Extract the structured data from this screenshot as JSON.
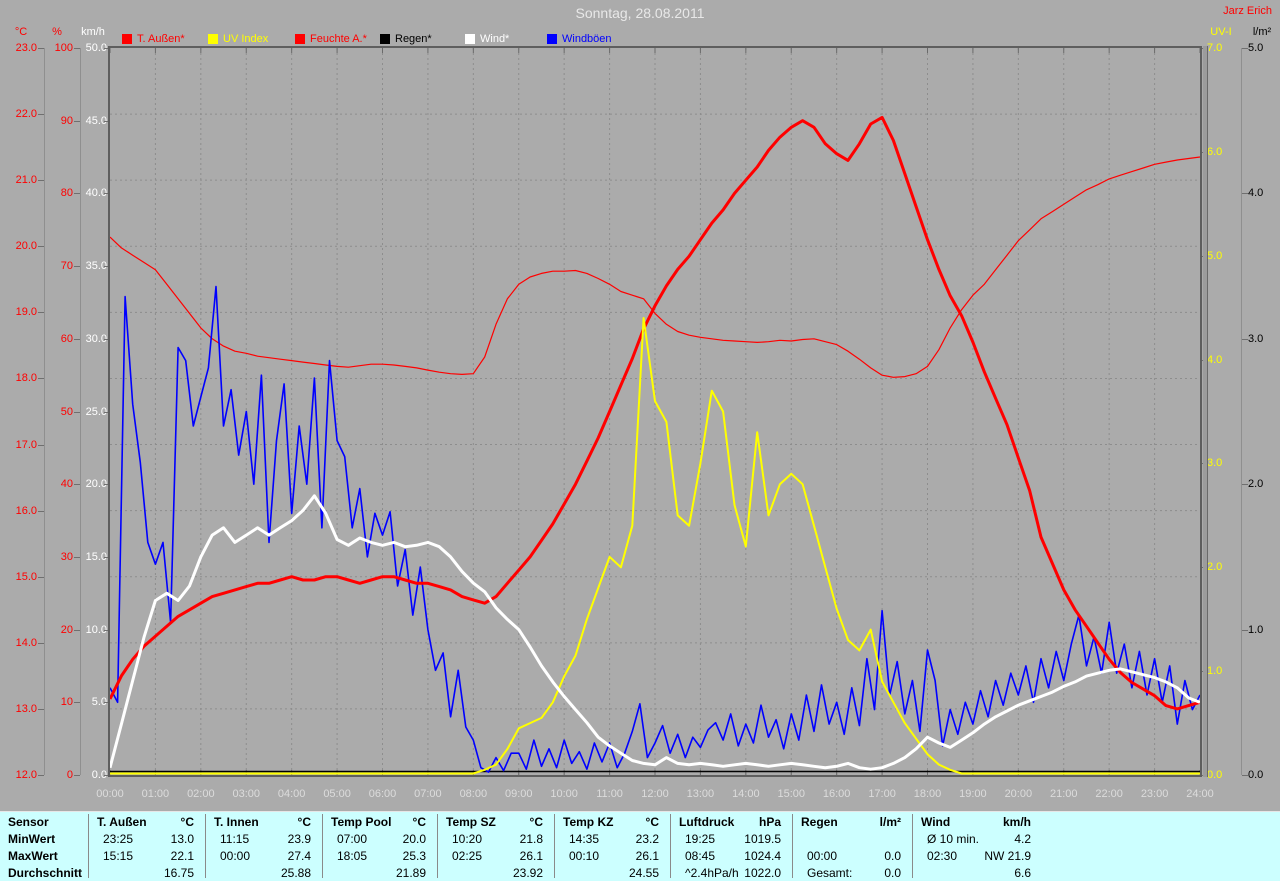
{
  "window": {
    "title": "Sonntag, 28.08.2011",
    "author": "Jarz Erich",
    "background": "#ABABAB"
  },
  "legend": [
    {
      "label": "T. Außen*",
      "color": "#FF0000"
    },
    {
      "label": "UV Index",
      "color": "#FFFF00"
    },
    {
      "label": "Feuchte A.*",
      "color": "#FF0000"
    },
    {
      "label": "Regen*",
      "color": "#000000"
    },
    {
      "label": "Wind*",
      "color": "#FFFFFF"
    },
    {
      "label": "Windböen",
      "color": "#0000FF"
    }
  ],
  "chart_data": {
    "type": "line",
    "title": "Sonntag, 28.08.2011",
    "x_unit": "time of day (hours)",
    "x_range": [
      0,
      24
    ],
    "x_ticks": [
      "00:00",
      "01:00",
      "02:00",
      "03:00",
      "04:00",
      "05:00",
      "06:00",
      "07:00",
      "08:00",
      "09:00",
      "10:00",
      "11:00",
      "12:00",
      "13:00",
      "14:00",
      "15:00",
      "16:00",
      "17:00",
      "18:00",
      "19:00",
      "20:00",
      "21:00",
      "22:00",
      "23:00",
      "24:00"
    ],
    "grid": {
      "color": "#8D8D8D",
      "style": "dashed",
      "h_lines": 10,
      "v_lines_every_hour": true
    },
    "y_axes": {
      "temp": {
        "header": "°C",
        "color": "#FF0000",
        "min": 12,
        "max": 23,
        "ticks": [
          "23.0",
          "22.0",
          "21.0",
          "20.0",
          "19.0",
          "18.0",
          "17.0",
          "16.0",
          "15.0",
          "14.0",
          "13.0",
          "12.0"
        ]
      },
      "hum": {
        "header": "%",
        "color": "#FF0000",
        "min": 0,
        "max": 100,
        "ticks": [
          "100",
          "90",
          "80",
          "70",
          "60",
          "50",
          "40",
          "30",
          "20",
          "10",
          "0"
        ]
      },
      "wind": {
        "header": "km/h",
        "color": "#FFFFFF",
        "min": 0,
        "max": 50,
        "ticks": [
          "50.0",
          "45.0",
          "40.0",
          "35.0",
          "30.0",
          "25.0",
          "20.0",
          "15.0",
          "10.0",
          "5.0",
          "0.0"
        ]
      },
      "uv": {
        "header": "UV-I",
        "color": "#FFFF00",
        "min": 0,
        "max": 7,
        "ticks": [
          "7.0",
          "6.0",
          "5.0",
          "4.0",
          "3.0",
          "2.0",
          "1.0",
          "0.0"
        ]
      },
      "rain": {
        "header": "l/m²",
        "color": "#000000",
        "min": 0,
        "max": 5,
        "ticks": [
          "5.0",
          "4.0",
          "3.0",
          "2.0",
          "1.0",
          "0.0"
        ]
      }
    },
    "series": [
      {
        "name": "Regen*",
        "axis": "rain",
        "color": "#000000",
        "width": 1.4,
        "x": [
          0,
          24
        ],
        "values": [
          0,
          0
        ]
      },
      {
        "name": "Feuchte A.*",
        "axis": "hum",
        "color": "#FF0000",
        "width": 1.2,
        "x_start": 0,
        "x_step": 0.25,
        "values": [
          74,
          72.5,
          71.5,
          70.5,
          69.5,
          67.5,
          65.5,
          63.5,
          61.5,
          60,
          59,
          58.3,
          58,
          57.6,
          57.4,
          57.2,
          57,
          56.8,
          56.6,
          56.4,
          56.2,
          56.1,
          56.3,
          56.5,
          56.5,
          56.4,
          56.2,
          56,
          55.7,
          55.4,
          55.2,
          55.1,
          55.2,
          57.5,
          62,
          65.5,
          67.5,
          68.5,
          69,
          69.3,
          69.3,
          69.4,
          69,
          68.3,
          67.5,
          66.5,
          66,
          65.5,
          63.5,
          62,
          61,
          60.5,
          60.2,
          60,
          59.8,
          59.7,
          59.6,
          59.5,
          59.6,
          59.8,
          59.7,
          59.9,
          60,
          59.6,
          59.2,
          58.3,
          57.2,
          56,
          55,
          54.7,
          54.8,
          55.2,
          56.2,
          58.5,
          61.5,
          64,
          66,
          67.5,
          69.5,
          71.5,
          73.5,
          75,
          76.5,
          77.5,
          78.5,
          79.5,
          80.5,
          81.2,
          82,
          82.5,
          83,
          83.5,
          84,
          84.3,
          84.6,
          84.8,
          85
        ]
      },
      {
        "name": "Windböen",
        "axis": "wind",
        "color": "#0000FF",
        "width": 1.6,
        "x_start": 0,
        "x_step": 0.16666667,
        "values": [
          6,
          5,
          32.9,
          25.5,
          21.5,
          16,
          14.5,
          16,
          10.5,
          29.4,
          28.5,
          24,
          26,
          28,
          33.6,
          24,
          26.5,
          22,
          25,
          20,
          27.5,
          16,
          23,
          26.9,
          18,
          24,
          20,
          27.3,
          17,
          28.5,
          23,
          21.9,
          17,
          19.7,
          15,
          18,
          16.5,
          18.1,
          13,
          15.5,
          11,
          14.3,
          10,
          7.2,
          8.4,
          4,
          7.2,
          3.3,
          2.4,
          0.5,
          0.2,
          1.2,
          0.3,
          1.5,
          1.5,
          0.4,
          2.4,
          0.6,
          1.8,
          0.5,
          2.4,
          0.8,
          1.6,
          0.4,
          2.2,
          0.9,
          2.2,
          0.5,
          1.5,
          3,
          4.9,
          1.2,
          2.2,
          3.4,
          1.5,
          2.8,
          1.2,
          2.6,
          1.9,
          3.1,
          3.6,
          2.4,
          4.2,
          2,
          3.5,
          2.2,
          4.8,
          2.6,
          3.8,
          1.8,
          4.2,
          2.4,
          5.5,
          3,
          6.2,
          3.5,
          5,
          2.8,
          6,
          3.4,
          8,
          4.5,
          11.3,
          5.5,
          7.8,
          4.2,
          6.5,
          3,
          8.6,
          6.5,
          2,
          4.5,
          2.8,
          5,
          3.5,
          5.8,
          4,
          6.5,
          4.8,
          7,
          5.5,
          7.5,
          5,
          8,
          6,
          8.5,
          6.5,
          9,
          11,
          7.5,
          9.5,
          7,
          10.5,
          7,
          9,
          6,
          8.5,
          5.5,
          8,
          5,
          7.5,
          3.5,
          6.5,
          4.5,
          5.5
        ]
      },
      {
        "name": "T. Außen*",
        "axis": "temp",
        "color": "#FF0000",
        "width": 3,
        "x_start": 0,
        "x_step": 0.25,
        "values": [
          13.15,
          13.5,
          13.75,
          13.95,
          14.1,
          14.25,
          14.4,
          14.5,
          14.6,
          14.7,
          14.75,
          14.8,
          14.85,
          14.9,
          14.9,
          14.95,
          15,
          14.95,
          14.95,
          15,
          15,
          14.95,
          14.9,
          14.95,
          15,
          15,
          14.95,
          14.9,
          14.9,
          14.85,
          14.8,
          14.7,
          14.65,
          14.6,
          14.7,
          14.9,
          15.1,
          15.3,
          15.55,
          15.8,
          16.1,
          16.4,
          16.75,
          17.1,
          17.5,
          17.9,
          18.3,
          18.75,
          19.1,
          19.4,
          19.65,
          19.85,
          20.1,
          20.35,
          20.55,
          20.8,
          21,
          21.2,
          21.45,
          21.65,
          21.8,
          21.9,
          21.8,
          21.55,
          21.4,
          21.3,
          21.55,
          21.85,
          21.95,
          21.6,
          21.1,
          20.6,
          20.1,
          19.65,
          19.25,
          18.95,
          18.55,
          18.1,
          17.7,
          17.3,
          16.8,
          16.3,
          15.6,
          15.2,
          14.8,
          14.5,
          14.25,
          14,
          13.75,
          13.55,
          13.4,
          13.3,
          13.2,
          13.05,
          13,
          13.05,
          13.1
        ]
      },
      {
        "name": "UV Index",
        "axis": "uv",
        "color": "#FFFF00",
        "width": 2,
        "x_start": 0,
        "x_step": 0.25,
        "values": [
          0,
          0,
          0,
          0,
          0,
          0,
          0,
          0,
          0,
          0,
          0,
          0,
          0,
          0,
          0,
          0,
          0,
          0,
          0,
          0,
          0,
          0,
          0,
          0,
          0,
          0,
          0,
          0,
          0,
          0,
          0,
          0,
          0,
          0.05,
          0.1,
          0.25,
          0.45,
          0.5,
          0.55,
          0.7,
          0.95,
          1.15,
          1.5,
          1.8,
          2.1,
          2,
          2.4,
          4.4,
          3.6,
          3.4,
          2.5,
          2.4,
          3,
          3.7,
          3.5,
          2.6,
          2.2,
          3.3,
          2.5,
          2.8,
          2.9,
          2.8,
          2.4,
          2,
          1.6,
          1.3,
          1.2,
          1.4,
          0.9,
          0.7,
          0.5,
          0.35,
          0.2,
          0.1,
          0.05,
          0,
          0,
          0,
          0,
          0,
          0,
          0,
          0,
          0,
          0,
          0,
          0,
          0,
          0,
          0,
          0,
          0,
          0,
          0,
          0,
          0,
          0
        ]
      },
      {
        "name": "Wind*",
        "axis": "wind",
        "color": "#FFFFFF",
        "width": 3,
        "x_start": 0,
        "x_step": 0.25,
        "values": [
          0.5,
          3.5,
          6.5,
          9.5,
          12,
          12.5,
          12,
          13,
          15,
          16.5,
          17,
          16,
          16.5,
          17,
          16.5,
          17,
          17.5,
          18.2,
          19.2,
          18,
          16.2,
          15.8,
          16.3,
          16,
          15.8,
          16,
          15.7,
          15.8,
          16,
          15.7,
          15,
          14,
          13.2,
          12.6,
          11.5,
          10.7,
          10,
          8.8,
          7.5,
          6.4,
          5.4,
          4.5,
          3.6,
          2.6,
          2,
          1.5,
          1,
          0.8,
          0.7,
          1.2,
          0.8,
          0.7,
          0.8,
          0.7,
          0.6,
          0.7,
          0.8,
          0.7,
          0.6,
          0.7,
          0.8,
          0.7,
          0.6,
          0.5,
          0.6,
          0.8,
          0.5,
          0.4,
          0.5,
          0.8,
          1.2,
          1.8,
          2.6,
          2.2,
          1.9,
          2.4,
          2.9,
          3.5,
          4,
          4.4,
          4.8,
          5.1,
          5.4,
          5.7,
          6.1,
          6.4,
          6.8,
          7,
          7.2,
          7.3,
          7.1,
          6.9,
          6.7,
          6.4,
          6,
          5.3,
          5
        ]
      }
    ]
  },
  "table": {
    "row_labels": [
      "Sensor",
      "MinWert",
      "MaxWert",
      "Durchschnitt"
    ],
    "groups": [
      {
        "name": "T. Außen",
        "unit": "°C",
        "rows": [
          [
            "23:25",
            "13.0"
          ],
          [
            "15:15",
            "22.1"
          ],
          [
            "",
            "16.75"
          ]
        ]
      },
      {
        "name": "T. Innen",
        "unit": "°C",
        "rows": [
          [
            "11:15",
            "23.9"
          ],
          [
            "00:00",
            "27.4"
          ],
          [
            "",
            "25.88"
          ]
        ]
      },
      {
        "name": "Temp Pool",
        "unit": "°C",
        "rows": [
          [
            "07:00",
            "20.0"
          ],
          [
            "18:05",
            "25.3"
          ],
          [
            "",
            "21.89"
          ]
        ]
      },
      {
        "name": "Temp SZ",
        "unit": "°C",
        "rows": [
          [
            "10:20",
            "21.8"
          ],
          [
            "02:25",
            "26.1"
          ],
          [
            "",
            "23.92"
          ]
        ]
      },
      {
        "name": "Temp KZ",
        "unit": "°C",
        "rows": [
          [
            "14:35",
            "23.2"
          ],
          [
            "00:10",
            "26.1"
          ],
          [
            "",
            "24.55"
          ]
        ]
      },
      {
        "name": "Luftdruck",
        "unit": "hPa",
        "rows": [
          [
            "19:25",
            "1019.5"
          ],
          [
            "08:45",
            "1024.4"
          ],
          [
            "^2.4hPa/h",
            "1022.0"
          ]
        ]
      },
      {
        "name": "Regen",
        "unit": "l/m²",
        "rows": [
          [
            "",
            ""
          ],
          [
            "00:00",
            "0.0"
          ],
          [
            "Gesamt:",
            "0.0"
          ]
        ]
      },
      {
        "name": "Wind",
        "unit": "km/h",
        "rows": [
          [
            "Ø 10 min.",
            "4.2"
          ],
          [
            "02:30",
            "NW 21.9"
          ],
          [
            "",
            "6.6"
          ]
        ]
      }
    ]
  }
}
